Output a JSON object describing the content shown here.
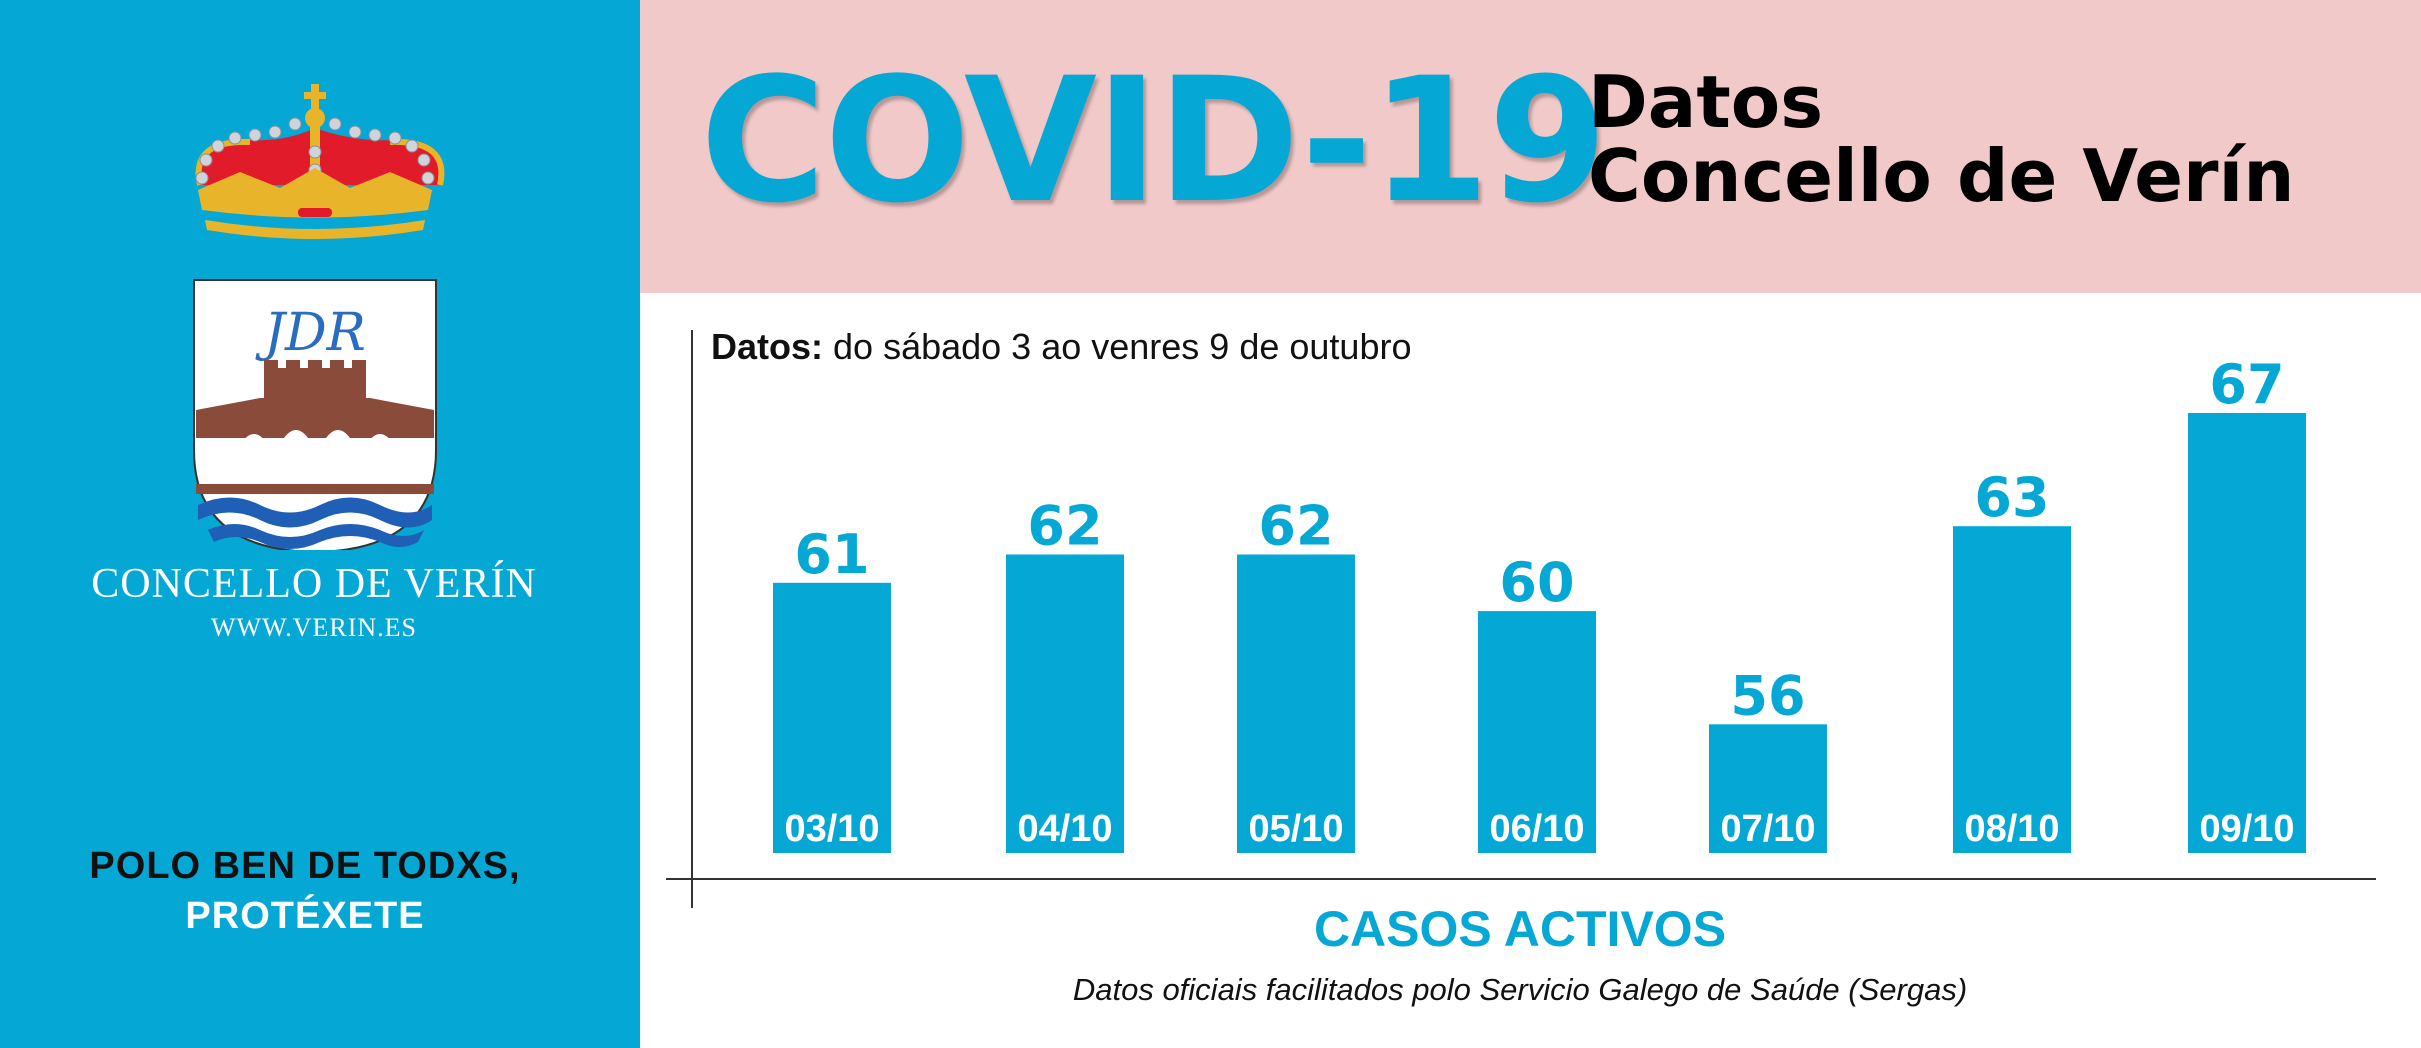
{
  "sidebar": {
    "org_name": "CONCELLO DE VERÍN",
    "website": "WWW.VERIN.ES",
    "monogram": "JDR",
    "slogan_line1": "POLO BEN DE TODXS,",
    "slogan_line2": "PROTÉXETE"
  },
  "header": {
    "title": "COVID-19",
    "subtitle_line1": "Datos",
    "subtitle_line2": "Concello de Verín"
  },
  "period": {
    "label": "Datos:",
    "text": "do sábado 3 ao venres 9 de outubro"
  },
  "chart_data": {
    "type": "bar",
    "categories": [
      "03/10",
      "04/10",
      "05/10",
      "06/10",
      "07/10",
      "08/10",
      "09/10"
    ],
    "values": [
      61,
      62,
      62,
      60,
      56,
      63,
      67
    ],
    "xlabel": "CASOS ACTIVOS",
    "ylabel": "",
    "data_labels": true,
    "grid": false,
    "legend": "none",
    "bar_color": "#05a8d5",
    "label_color": "#05a8d5"
  },
  "footer": {
    "metric": "CASOS ACTIVOS",
    "source": "Datos oficiais facilitados polo Servicio Galego de Saúde (Sergas)"
  },
  "colors": {
    "sidebar": "#05a8d5",
    "header": "#f1c9c9",
    "accent": "#05a8d5"
  }
}
